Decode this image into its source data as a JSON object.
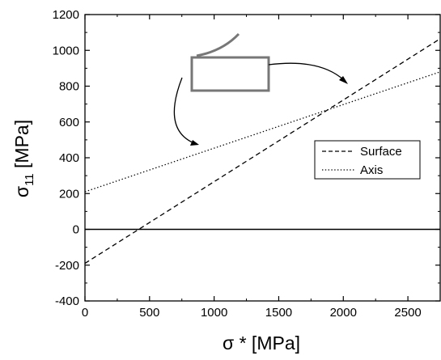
{
  "chart_data": {
    "type": "line",
    "title": "",
    "xlabel": "σ * [MPa]",
    "ylabel_main": "σ",
    "ylabel_sub": "11",
    "ylabel_unit": " [MPa]",
    "xlim": [
      0,
      2750
    ],
    "ylim": [
      -400,
      1200
    ],
    "xticks": [
      0,
      500,
      1000,
      1500,
      2000,
      2500
    ],
    "yticks": [
      -400,
      -200,
      0,
      200,
      400,
      600,
      800,
      1000,
      1200
    ],
    "grid": false,
    "legend_position": "right, middle",
    "series": [
      {
        "name": "Surface",
        "style": "dashed",
        "color": "#000000",
        "x": [
          0,
          2750
        ],
        "y": [
          -190,
          1065
        ]
      },
      {
        "name": "Axis",
        "style": "dotted",
        "color": "#000000",
        "x": [
          0,
          2750
        ],
        "y": [
          210,
          880
        ]
      }
    ],
    "reference_line": {
      "y": 0,
      "style": "solid",
      "color": "#000000"
    }
  }
}
